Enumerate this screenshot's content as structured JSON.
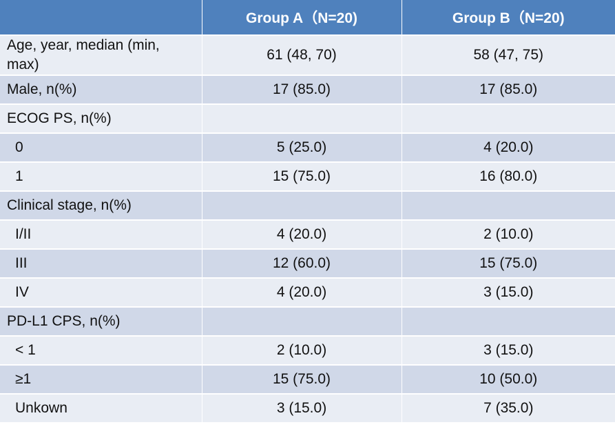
{
  "header": {
    "col1": "",
    "col2": "Group A（N=20)",
    "col3": "Group B（N=20)"
  },
  "rows": [
    {
      "label": "Age, year, median (min, max)",
      "a": "61 (48, 70)",
      "b": "58 (47, 75)"
    },
    {
      "label": "Male, n(%)",
      "a": "17 (85.0)",
      "b": "17 (85.0)"
    },
    {
      "label": "ECOG PS, n(%)",
      "a": "",
      "b": ""
    },
    {
      "label": "0",
      "a": "5 (25.0)",
      "b": "4 (20.0)"
    },
    {
      "label": "1",
      "a": "15 (75.0)",
      "b": "16 (80.0)"
    },
    {
      "label": "Clinical stage, n(%)",
      "a": "",
      "b": ""
    },
    {
      "label": "I/II",
      "a": "4 (20.0)",
      "b": "2 (10.0)"
    },
    {
      "label": "III",
      "a": "12 (60.0)",
      "b": "15 (75.0)"
    },
    {
      "label": "IV",
      "a": "4 (20.0)",
      "b": "3 (15.0)"
    },
    {
      "label": "PD-L1 CPS, n(%)",
      "a": "",
      "b": ""
    },
    {
      "label": "< 1",
      "a": "2 (10.0)",
      "b": "3 (15.0)"
    },
    {
      "label": "≥1",
      "a": "15 (75.0)",
      "b": "10 (50.0)"
    },
    {
      "label": "Unkown",
      "a": "3 (15.0)",
      "b": "7 (35.0)"
    }
  ],
  "colors": {
    "header_bg": "#4f81bd",
    "row_light": "#e9edf4",
    "row_dark": "#d0d8e8"
  }
}
